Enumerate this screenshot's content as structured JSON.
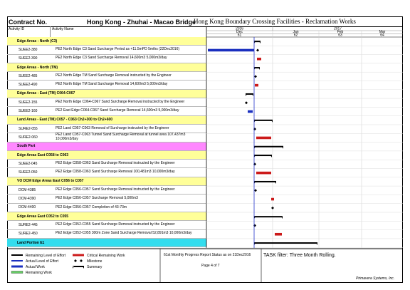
{
  "header": {
    "contract_label": "Contract No.",
    "project": "Hong Kong - Zhuhai - Macao Bridge",
    "title": "Hong Kong Boundary Crossing Facilities - Reclamation Works"
  },
  "columns": {
    "id": "Activity ID",
    "name": "Activity Name"
  },
  "timeline": {
    "years": [
      "2016",
      "2017"
    ],
    "months": [
      "Dec",
      "Jan",
      "Feb",
      "Mar"
    ],
    "weeks": [
      "61",
      "62",
      "63",
      "64"
    ]
  },
  "rows": [
    {
      "title": "Edge Areas - North (C3)",
      "color": "#ffff99"
    },
    {
      "id": "SUEE2-380",
      "name": "PE2 North Edge C3 Sand Surcharge Period as +11.5mPD 5mths (22Dec2016)"
    },
    {
      "id": "SUEE2-390",
      "name": "PE2 North Edge C3 Sand Surcharge Removal 14,600m3 5,000m3/day"
    },
    {
      "title": "Edge Areas - North (TM)",
      "color": "#ffff99"
    },
    {
      "id": "SUEE2-485",
      "name": "PE2 North Edge TM Sand Surcharge Removal instructed by the Engineer"
    },
    {
      "id": "SUEE2-490",
      "name": "PE2 North Edge TM Sand Surcharge Removal 14,600m3 5,000m3/day"
    },
    {
      "title": "Edge Areas - East (TM) C064-C067",
      "color": "#ffff99"
    },
    {
      "id": "SUEE2-155",
      "name": "PE2 North Edge C064-C067 Sand Surcharge Removal instructed by the Engineer"
    },
    {
      "id": "SUEE2-160",
      "name": "PE2 East Edge C064-C067 Sand Surcharge Removal 14,600m3 5,000m3/day"
    },
    {
      "title": "Land Areas - East (TM) C057 - C063 Ch2+300 to Ch2+600",
      "color": "#ffff99"
    },
    {
      "id": "SURE2-055",
      "name": "PE2 Land C057-C063 Removal of Surcharge instructed by the Engineer"
    },
    {
      "id": "SURE2-060",
      "name": "PE2 Land C057-C063 Tunnel Sand Surcharge Removal at tunnel area 107,437m3 10,000m3/day"
    },
    {
      "title": "South Part",
      "color": "#ff88ff"
    },
    {
      "title": "Edge Areas East C058 to C063",
      "color": "#ffff99"
    },
    {
      "id": "SUEE2-045",
      "name": "PE2 Edge C058-C063 Sand Surcharge Removal instructed by the Engineer"
    },
    {
      "id": "SUEE2-050",
      "name": "PE2 Edge C058-C063 Sand Surcharge Removal 100,481m3 10,000m3/day"
    },
    {
      "title": "VO DCM Edge Areas East C056 to C057",
      "color": "#ffff99"
    },
    {
      "id": "DCM-4385",
      "name": "PE2 Edge C056-C057 Sand Surcharge Removal instructed by the Engineer"
    },
    {
      "id": "DCM-4390",
      "name": "PE2 Edge C056-C057 Surcharge Removal 5,000m3"
    },
    {
      "id": "DCM-4400",
      "name": "PE2 Edge C056-C057 Completion of 43-73m"
    },
    {
      "title": "Edge Areas East C052 to C055",
      "color": "#ffff99"
    },
    {
      "id": "SURE2-445",
      "name": "PE2 Edge C052-C055 Sand Surcharge Removal instructed by the Engineer"
    },
    {
      "id": "SURE2-450",
      "name": "PE2 Edge C052-C055 300m Zone Sand Surcharge Removal 52,891m3 10,000m3/day"
    },
    {
      "title": "Land Portion E1",
      "color": "#33ddee"
    }
  ],
  "footer": {
    "legend": [
      "Remaining Level of Effort",
      "Actual Level of Effort",
      "Actual Work",
      "Remaining Work",
      "Critical Remaining Work",
      "Milestone",
      "Summary"
    ],
    "report_status": "61st Monthly Progress Report Status as on 21Dec2016",
    "page": "Page 4 of 7",
    "filter": "TASK filter: Three Month Rolling.",
    "vendor": "Primavera Systems, Inc."
  }
}
